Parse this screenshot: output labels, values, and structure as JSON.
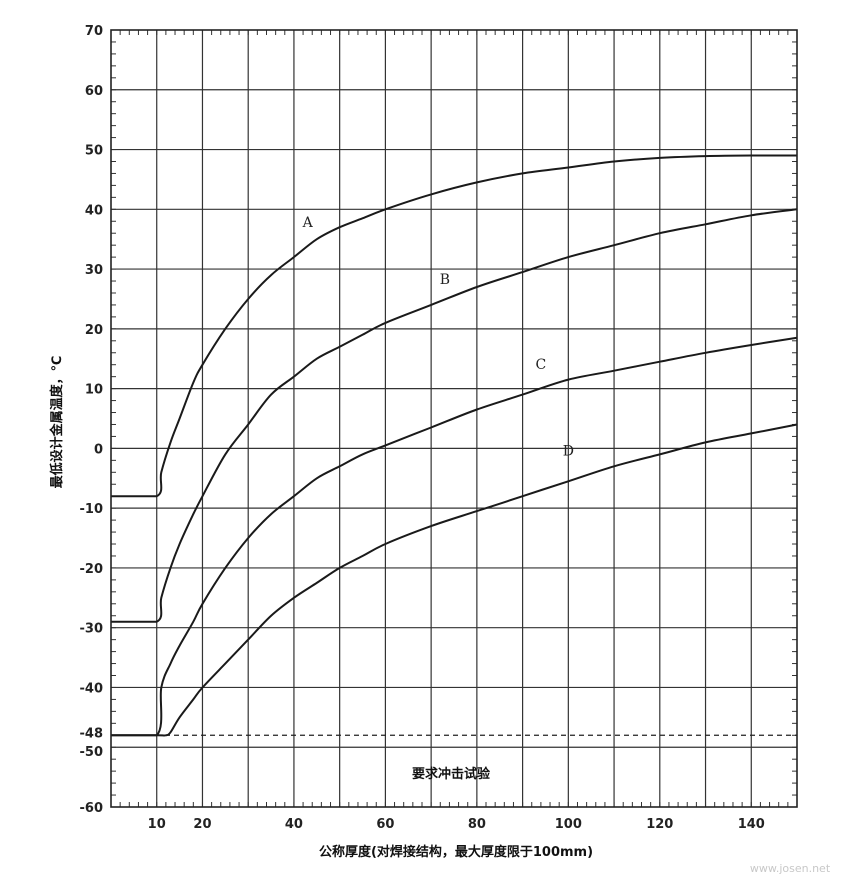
{
  "chart_data": {
    "type": "line",
    "xlabel": "公称厚度(对焊接结构，最大厚度限于100mm)",
    "ylabel": "最低设计金属温度，℃",
    "xlim": [
      0,
      150
    ],
    "ylim": [
      -60,
      70
    ],
    "xticks": [
      10,
      20,
      40,
      60,
      80,
      100,
      120,
      140
    ],
    "yticks": [
      70,
      60,
      50,
      40,
      30,
      20,
      10,
      0,
      -10,
      -20,
      -30,
      -40,
      -48,
      -50,
      -60
    ],
    "grid": true,
    "reference_line": {
      "y": -48,
      "style": "dashed"
    },
    "annotation": "要求冲击试验",
    "watermark": "www.josen.net",
    "series": [
      {
        "name": "A",
        "x": [
          0,
          10,
          11,
          13,
          15,
          18,
          20,
          25,
          30,
          35,
          40,
          45,
          50,
          55,
          60,
          70,
          80,
          90,
          100,
          110,
          120,
          130,
          140,
          150
        ],
        "y": [
          -8,
          -8,
          -4,
          1,
          5,
          11,
          14,
          20,
          25,
          29,
          32,
          35,
          37,
          38.5,
          40,
          42.5,
          44.5,
          46,
          47,
          48,
          48.6,
          48.9,
          49,
          49
        ]
      },
      {
        "name": "B",
        "x": [
          0,
          10,
          11,
          13,
          15,
          18,
          20,
          25,
          30,
          35,
          40,
          45,
          50,
          55,
          60,
          70,
          80,
          90,
          100,
          110,
          120,
          130,
          140,
          150
        ],
        "y": [
          -29,
          -29,
          -25,
          -20,
          -16,
          -11,
          -8,
          -1,
          4,
          9,
          12,
          15,
          17,
          19,
          21,
          24,
          27,
          29.5,
          32,
          34,
          36,
          37.5,
          39,
          40
        ]
      },
      {
        "name": "C",
        "x": [
          0,
          10,
          11,
          13,
          15,
          18,
          20,
          25,
          30,
          35,
          40,
          45,
          50,
          55,
          60,
          70,
          80,
          90,
          100,
          110,
          120,
          130,
          140,
          150
        ],
        "y": [
          -48,
          -48,
          -40,
          -36,
          -33,
          -29,
          -26,
          -20,
          -15,
          -11,
          -8,
          -5,
          -3,
          -1,
          0.5,
          3.5,
          6.5,
          9,
          11.5,
          13,
          14.5,
          16,
          17.3,
          18.5
        ]
      },
      {
        "name": "D",
        "x": [
          0,
          10,
          12,
          13,
          15,
          18,
          20,
          25,
          30,
          35,
          40,
          45,
          50,
          55,
          60,
          70,
          80,
          90,
          100,
          110,
          120,
          130,
          140,
          150
        ],
        "y": [
          -48,
          -48,
          -48,
          -47.5,
          -45,
          -42,
          -40,
          -36,
          -32,
          -28,
          -25,
          -22.5,
          -20,
          -18,
          -16,
          -13,
          -10.5,
          -8,
          -5.5,
          -3,
          -1,
          1,
          2.5,
          4
        ]
      }
    ],
    "series_labels": [
      {
        "text": "A",
        "x": 43,
        "y": 37
      },
      {
        "text": "B",
        "x": 73,
        "y": 27.5
      },
      {
        "text": "C",
        "x": 94,
        "y": 13.3
      },
      {
        "text": "D",
        "x": 100,
        "y": -1.2
      }
    ]
  }
}
